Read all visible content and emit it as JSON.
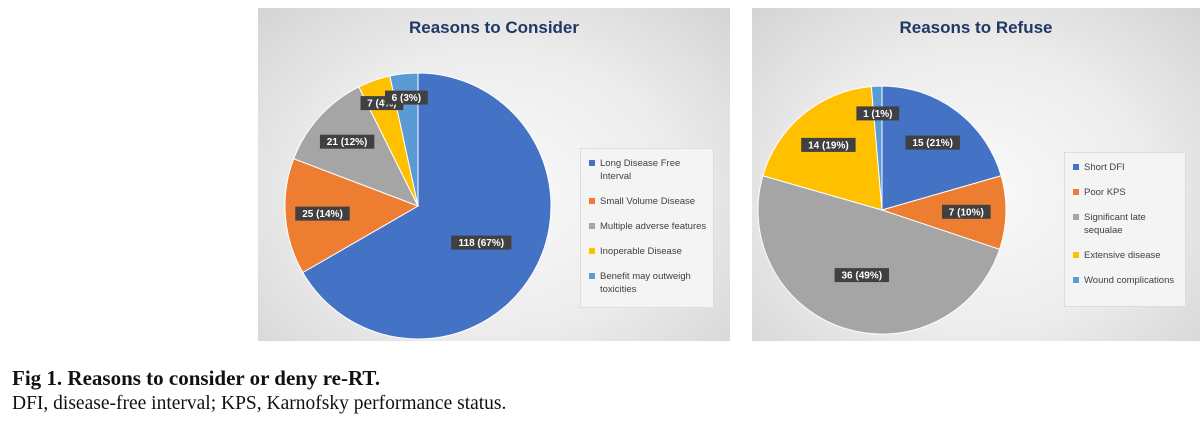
{
  "chart_data": [
    {
      "type": "pie",
      "title": "Reasons to Consider",
      "legend_position": "right",
      "slices": [
        {
          "name": "Long Disease Free Interval",
          "value": 118,
          "label": "118 (67%)",
          "color": "#4472C4"
        },
        {
          "name": "Small Volume Disease",
          "value": 25,
          "label": "25 (14%)",
          "color": "#ED7D31"
        },
        {
          "name": "Multiple adverse features",
          "value": 21,
          "label": "21 (12%)",
          "color": "#A5A5A5"
        },
        {
          "name": "Inoperable Disease",
          "value": 7,
          "label": "7 (4%)",
          "color": "#FFC000"
        },
        {
          "name": "Benefit may outweigh toxicities",
          "value": 6,
          "label": "6 (3%)",
          "color": "#5B9BD5"
        }
      ]
    },
    {
      "type": "pie",
      "title": "Reasons to Refuse",
      "legend_position": "right",
      "slices": [
        {
          "name": "Short DFI",
          "value": 15,
          "label": "15 (21%)",
          "color": "#4472C4"
        },
        {
          "name": "Poor KPS",
          "value": 7,
          "label": "7 (10%)",
          "color": "#ED7D31"
        },
        {
          "name": "Significant late sequalae",
          "value": 36,
          "label": "36 (49%)",
          "color": "#A5A5A5"
        },
        {
          "name": "Extensive disease",
          "value": 14,
          "label": "14 (19%)",
          "color": "#FFC000"
        },
        {
          "name": "Wound complications",
          "value": 1,
          "label": "1 (1%)",
          "color": "#5B9BD5"
        }
      ]
    }
  ],
  "caption": {
    "title": "Fig 1.  Reasons to consider or deny re-RT.",
    "text": "DFI, disease-free interval; KPS, Karnofsky performance status."
  }
}
